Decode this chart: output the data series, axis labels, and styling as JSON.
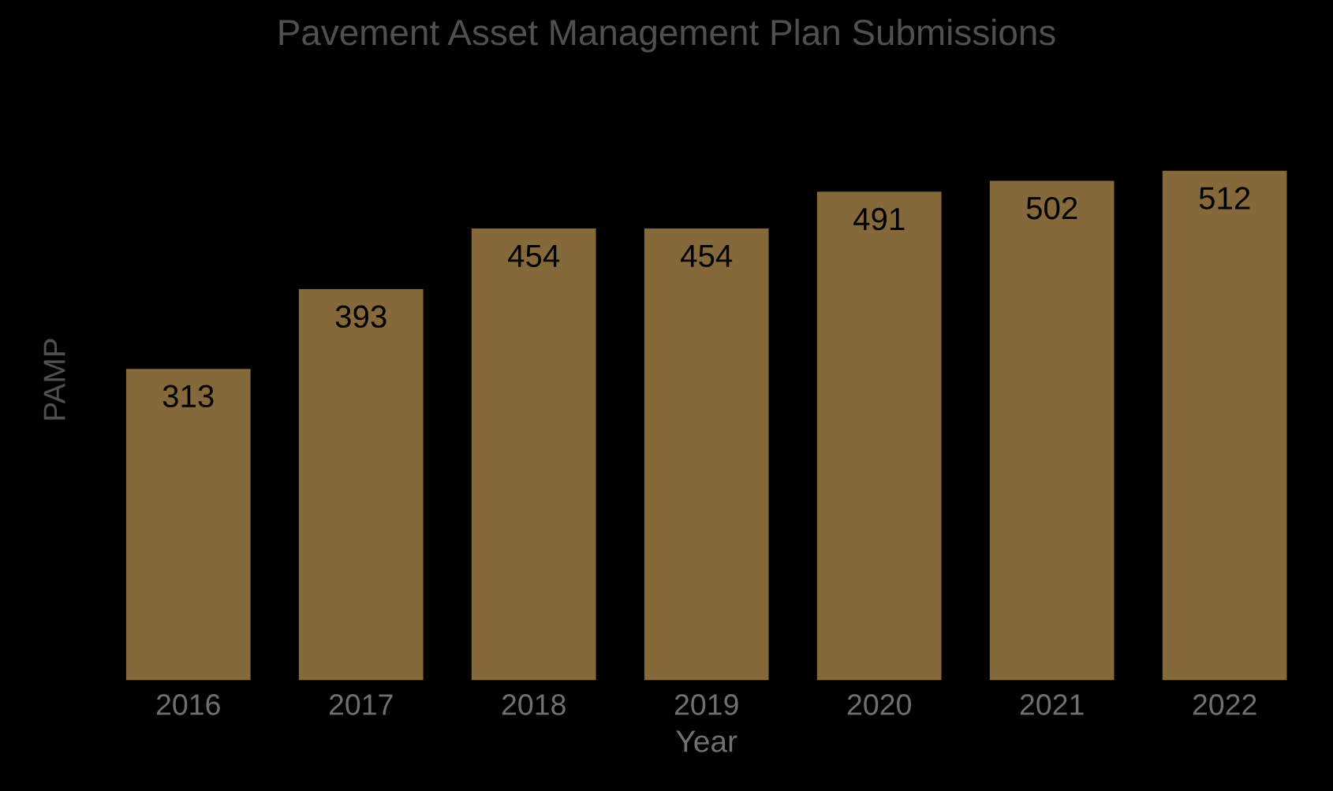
{
  "chart_data": {
    "type": "bar",
    "title": "Pavement Asset Management Plan Submissions",
    "xlabel": "Year",
    "ylabel": "PAMP",
    "categories": [
      "2016",
      "2017",
      "2018",
      "2019",
      "2020",
      "2021",
      "2022"
    ],
    "values": [
      313,
      393,
      454,
      454,
      491,
      502,
      512
    ],
    "color": "#85693a",
    "data_labels": true,
    "tick_labels": "x",
    "grid": false,
    "legend": false
  }
}
